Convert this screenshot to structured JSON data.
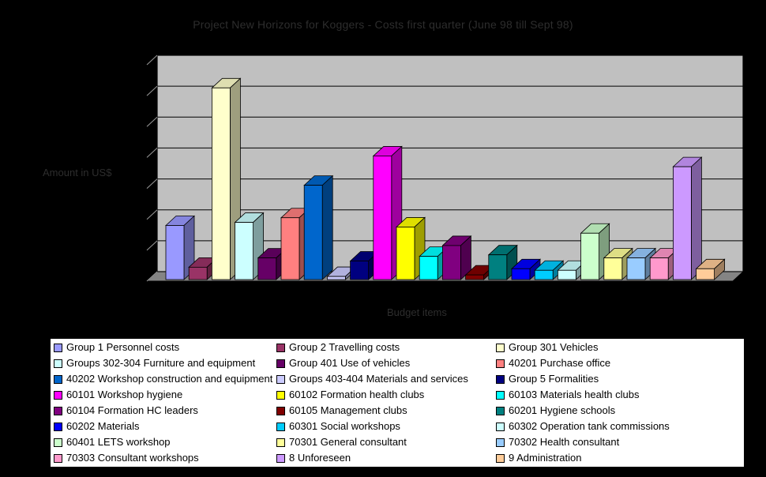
{
  "window": {
    "background_color": "#000000"
  },
  "chart": {
    "wall_color": "#c0c0c0",
    "floor_color": "#848484",
    "gridline_color": "#000000",
    "side_tick_color": "#9a9a9a",
    "title_text_color": "#2d2d2d",
    "legend_background": "#ffffff",
    "legend_border": "#000000",
    "legend_columns": 3
  },
  "chart_data": {
    "type": "bar",
    "style": "3d-column",
    "title": "Project New Horizons for Koggers - Costs first quarter (June 98 till Sept 98)",
    "xlabel": "Budget items",
    "ylabel": "Amount in US$",
    "ylim": [
      0,
      7
    ],
    "grid": true,
    "gridline_intervals": 7,
    "legend_position": "bottom",
    "note": "No numeric y-axis tick labels are visible; values are expressed in gridline units (7 equal horizontal gridline intervals from floor to wall top)",
    "series": [
      {
        "label": "Group 1 Personnel costs",
        "color": "#9999FF",
        "value": 1.75
      },
      {
        "label": "Group 2 Travelling costs",
        "color": "#993366",
        "value": 0.4
      },
      {
        "label": "Group 301 Vehicles",
        "color": "#FFFFCC",
        "value": 6.2
      },
      {
        "label": "Groups 302-304 Furniture and equipment",
        "color": "#CCFFFF",
        "value": 1.85
      },
      {
        "label": "Group 401 Use of vehicles",
        "color": "#660066",
        "value": 0.7
      },
      {
        "label": "40201 Purchase office",
        "color": "#FF8080",
        "value": 2.0
      },
      {
        "label": "40202 Workshop construction and equipment",
        "color": "#0066CC",
        "value": 3.05
      },
      {
        "label": "Groups 403-404 Materials and services",
        "color": "#CCCCFF",
        "value": 0.1
      },
      {
        "label": "Group 5 Formalities",
        "color": "#000080",
        "value": 0.6
      },
      {
        "label": "60101 Workshop hygiene",
        "color": "#FF00FF",
        "value": 4.0
      },
      {
        "label": "60102 Formation health clubs",
        "color": "#FFFF00",
        "value": 1.7
      },
      {
        "label": "60103 Materials health clubs",
        "color": "#00FFFF",
        "value": 0.75
      },
      {
        "label": "60104 Formation HC leaders",
        "color": "#800080",
        "value": 1.1
      },
      {
        "label": "60105 Management clubs",
        "color": "#800000",
        "value": 0.15
      },
      {
        "label": "60201 Hygiene schools",
        "color": "#008080",
        "value": 0.8
      },
      {
        "label": "60202 Materials",
        "color": "#0000FF",
        "value": 0.35
      },
      {
        "label": "60301 Social workshops",
        "color": "#00CCFF",
        "value": 0.3
      },
      {
        "label": "60302 Operation tank commissions",
        "color": "#CCFFFF",
        "value": 0.3
      },
      {
        "label": "60401 LETS workshop",
        "color": "#CCFFCC",
        "value": 1.5
      },
      {
        "label": "70301 General consultant",
        "color": "#FFFF99",
        "value": 0.7
      },
      {
        "label": "70302 Health consultant",
        "color": "#99CCFF",
        "value": 0.7
      },
      {
        "label": "70303 Consultant workshops",
        "color": "#FF99CC",
        "value": 0.7
      },
      {
        "label": "8 Unforeseen",
        "color": "#CC99FF",
        "value": 3.65
      },
      {
        "label": "9 Administration",
        "color": "#FFCC99",
        "value": 0.35
      }
    ]
  }
}
